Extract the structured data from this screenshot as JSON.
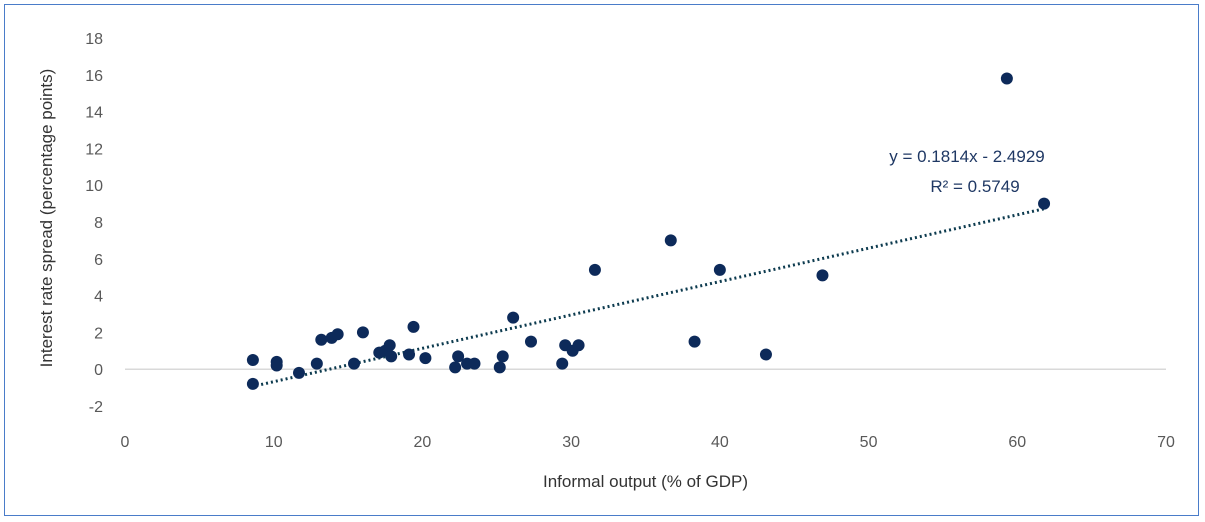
{
  "chart_data": {
    "type": "scatter",
    "title": "",
    "xlabel": "Informal output (% of GDP)",
    "ylabel": "Interest rate spread (percentage points)",
    "xlim": [
      0,
      70
    ],
    "ylim": [
      -2,
      18
    ],
    "x_ticks": [
      "0",
      "10",
      "20",
      "30",
      "40",
      "50",
      "60",
      "70"
    ],
    "y_ticks": [
      "-2",
      "0",
      "2",
      "4",
      "6",
      "8",
      "10",
      "12",
      "14",
      "16",
      "18"
    ],
    "grid": false,
    "legend": "none",
    "marker_color": "#0d2a5a",
    "trendline": {
      "type": "linear",
      "slope": 0.1814,
      "intercept": -2.4929,
      "x_range": [
        8.5,
        61.8
      ],
      "style": "dotted",
      "color": "#0d3b4f",
      "equation_label": "y = 0.1814x - 2.4929",
      "r2_label": "R² = 0.5749"
    },
    "series": [
      {
        "points": [
          [
            8.6,
            0.5
          ],
          [
            8.6,
            -0.8
          ],
          [
            10.2,
            0.4
          ],
          [
            10.2,
            0.2
          ],
          [
            11.7,
            -0.2
          ],
          [
            12.9,
            0.3
          ],
          [
            13.2,
            1.6
          ],
          [
            13.9,
            1.7
          ],
          [
            14.3,
            1.9
          ],
          [
            15.4,
            0.3
          ],
          [
            16.0,
            2.0
          ],
          [
            17.1,
            0.9
          ],
          [
            17.5,
            1.0
          ],
          [
            17.8,
            1.3
          ],
          [
            17.9,
            0.7
          ],
          [
            19.1,
            0.8
          ],
          [
            19.4,
            2.3
          ],
          [
            20.2,
            0.6
          ],
          [
            22.2,
            0.1
          ],
          [
            22.4,
            0.7
          ],
          [
            23.0,
            0.3
          ],
          [
            23.5,
            0.3
          ],
          [
            25.2,
            0.1
          ],
          [
            25.4,
            0.7
          ],
          [
            26.1,
            2.8
          ],
          [
            27.3,
            1.5
          ],
          [
            29.4,
            0.3
          ],
          [
            29.6,
            1.3
          ],
          [
            30.1,
            1.0
          ],
          [
            30.5,
            1.3
          ],
          [
            31.6,
            5.4
          ],
          [
            36.7,
            7.0
          ],
          [
            38.3,
            1.5
          ],
          [
            40.0,
            5.4
          ],
          [
            43.1,
            0.8
          ],
          [
            46.9,
            5.1
          ],
          [
            59.3,
            15.8
          ],
          [
            61.8,
            9.0
          ]
        ]
      }
    ]
  }
}
